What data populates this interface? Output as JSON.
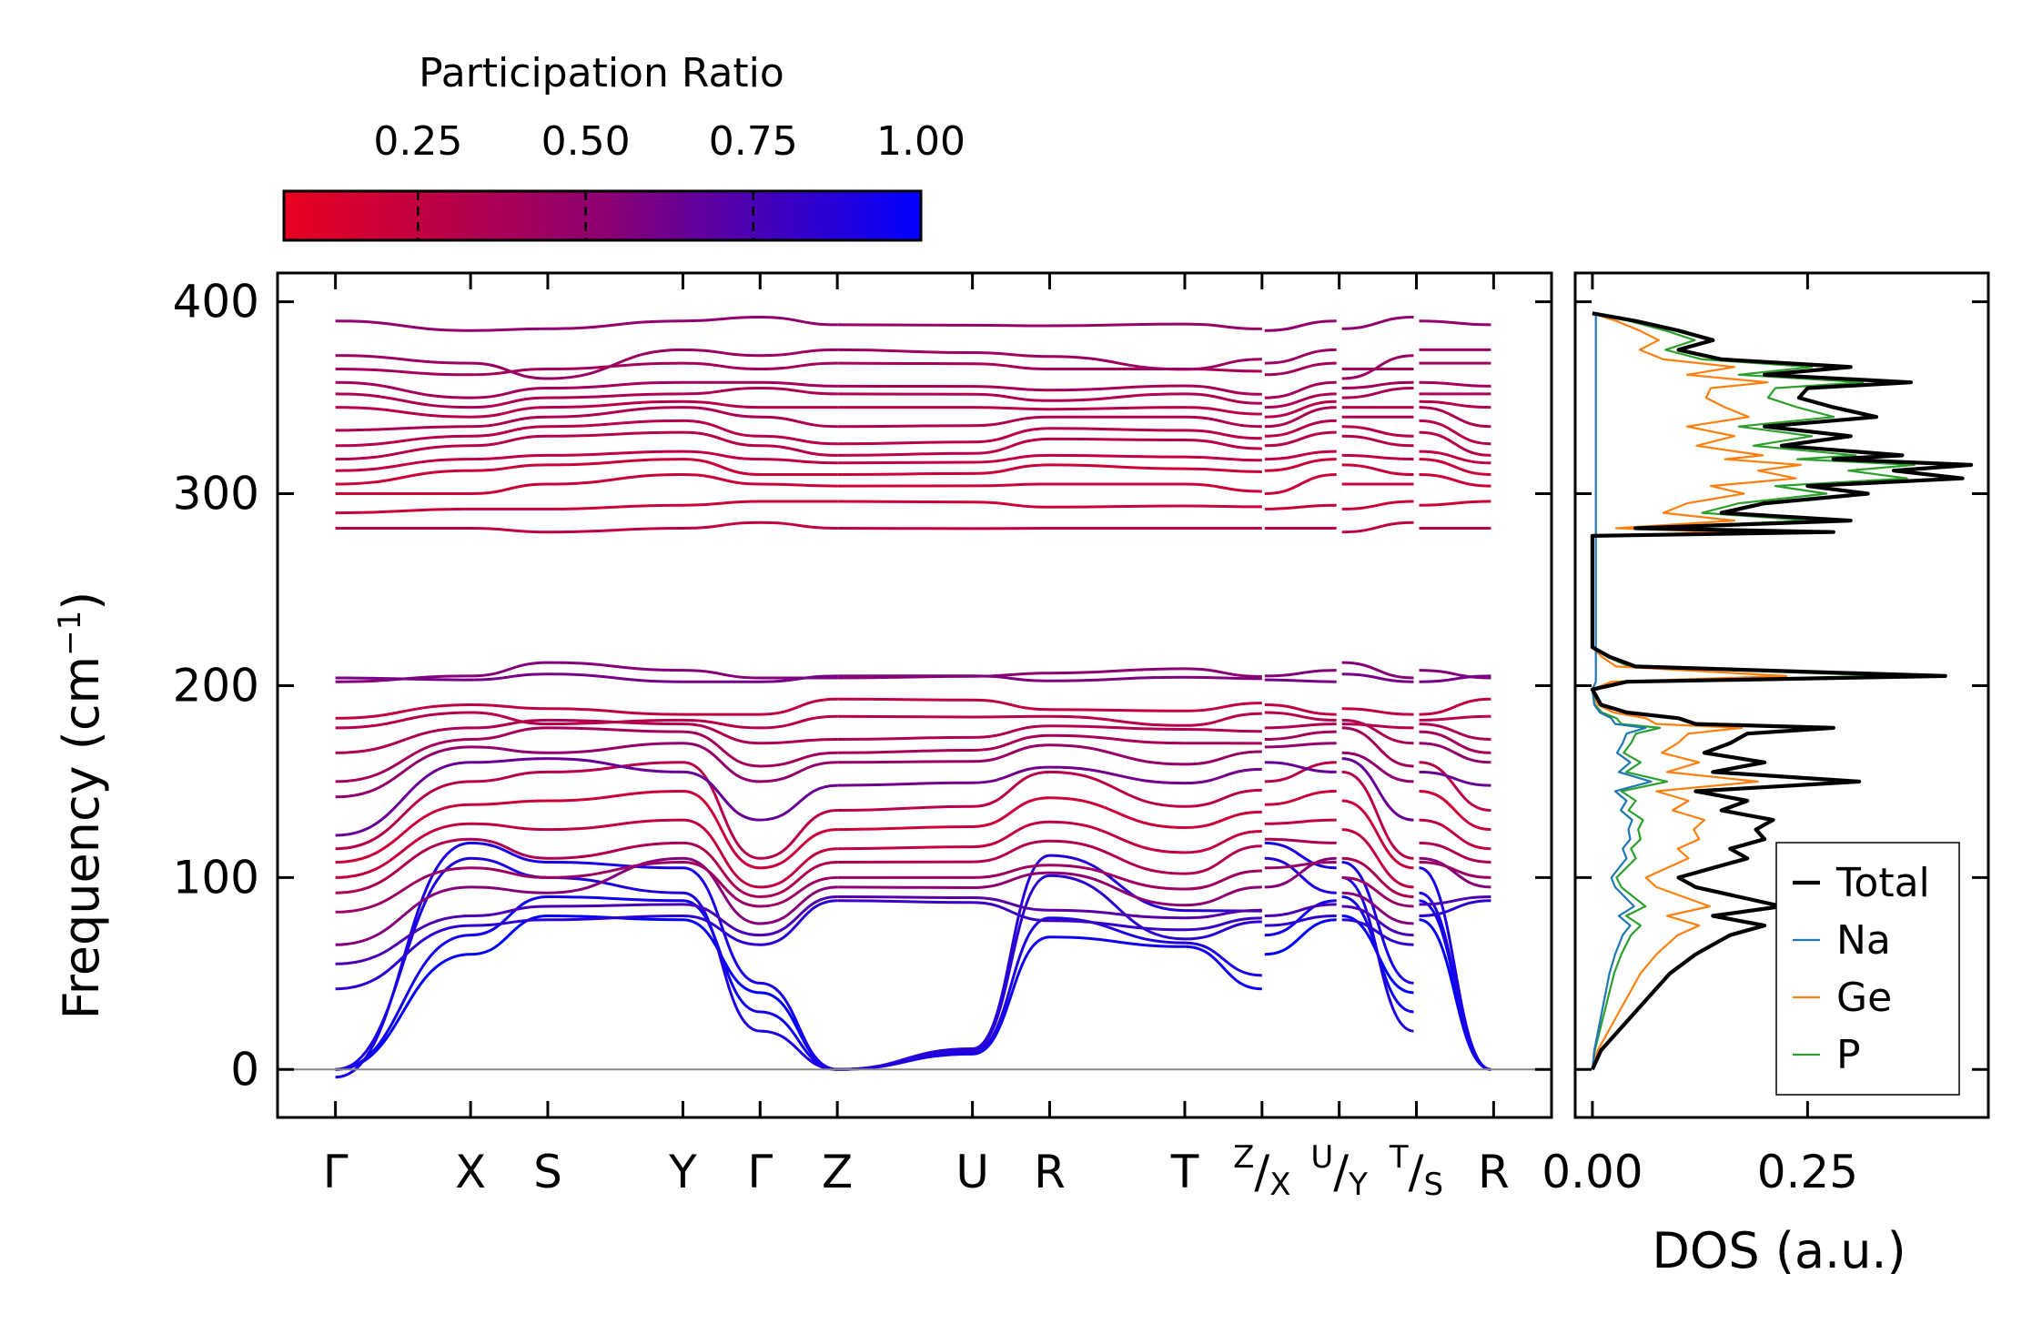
{
  "colorbar": {
    "title": "Participation Ratio",
    "ticks": [
      "0.25",
      "0.50",
      "0.75",
      "1.00"
    ],
    "tick_values": [
      0.25,
      0.5,
      0.75,
      1.0
    ],
    "range": [
      0.05,
      1.0
    ],
    "color_low": "#e8001f",
    "color_mid": "#8c0070",
    "color_high": "#0000ff"
  },
  "chart_data": [
    {
      "type": "line",
      "title": "",
      "ylabel": "Frequency (cm⁻¹)",
      "ylabel_base": "Frequency (cm",
      "ylabel_sup": "−1",
      "ylabel_close": ")",
      "ylim": [
        -25,
        415
      ],
      "yticks": [
        0,
        100,
        200,
        300,
        400
      ],
      "ytick_labels": [
        "0",
        "100",
        "200",
        "300",
        "400"
      ],
      "kpath": {
        "positions": [
          0,
          0.7,
          1.1,
          1.8,
          2.2,
          2.6,
          3.3,
          3.7,
          4.4,
          4.8,
          5.2,
          5.6,
          6.0
        ],
        "labels": [
          "Γ",
          "X",
          "S",
          "Y",
          "Γ",
          "Z",
          "U",
          "R",
          "T",
          "Z|X",
          "U|Y",
          "T|S",
          "R"
        ],
        "breaks_after": [
          4.8,
          5.2,
          5.6
        ]
      },
      "x_range": [
        -0.3,
        6.3
      ],
      "zero_line_color": "#888888",
      "branches": {
        "acoustic": [
          {
            "y": [
              0,
              60,
              80,
              78,
              40,
              0
            ],
            "pr": 1.0
          },
          {
            "y": [
              0,
              70,
              90,
              88,
              30,
              0
            ],
            "pr": 0.95
          },
          {
            "y": [
              0,
              110,
              100,
              92,
              20,
              0
            ],
            "pr": 0.9
          },
          {
            "y": [
              -4,
              118,
              108,
              105,
              45,
              0
            ],
            "pr": 0.92
          }
        ],
        "low_optical": [
          {
            "y": [
              42,
              75,
              78,
              80,
              65,
              88
            ],
            "pr": 0.85
          },
          {
            "y": [
              55,
              80,
              85,
              86,
              70,
              90
            ],
            "pr": 0.75
          },
          {
            "y": [
              65,
              95,
              92,
              110,
              76,
              95
            ],
            "pr": 0.55
          },
          {
            "y": [
              82,
              105,
              100,
              108,
              85,
              100
            ],
            "pr": 0.45
          },
          {
            "y": [
              92,
              120,
              110,
              118,
              90,
              108
            ],
            "pr": 0.35
          },
          {
            "y": [
              100,
              128,
              125,
              130,
              95,
              115
            ],
            "pr": 0.25
          },
          {
            "y": [
              108,
              138,
              140,
              145,
              105,
              125
            ],
            "pr": 0.2
          },
          {
            "y": [
              115,
              150,
              155,
              160,
              110,
              135
            ],
            "pr": 0.3
          },
          {
            "y": [
              122,
              160,
              162,
              155,
              130,
              148
            ],
            "pr": 0.65
          },
          {
            "y": [
              142,
              168,
              165,
              170,
              150,
              160
            ],
            "pr": 0.5
          },
          {
            "y": [
              150,
              172,
              178,
              176,
              158,
              165
            ],
            "pr": 0.4
          },
          {
            "y": [
              165,
              178,
              182,
              180,
              170,
              172
            ],
            "pr": 0.35
          },
          {
            "y": [
              178,
              186,
              180,
              182,
              178,
              184
            ],
            "pr": 0.3
          },
          {
            "y": [
              183,
              190,
              188,
              185,
              185,
              193
            ],
            "pr": 0.25
          },
          {
            "y": [
              202,
              205,
              212,
              208,
              204,
              204
            ],
            "pr": 0.55
          },
          {
            "y": [
              204,
              203,
              206,
              202,
              202,
              205
            ],
            "pr": 0.6
          }
        ],
        "high_optical": [
          {
            "y": [
              282,
              282,
              280,
              282,
              285,
              282
            ],
            "pr": 0.25
          },
          {
            "y": [
              290,
              292,
              292,
              294,
              296,
              296
            ],
            "pr": 0.2
          },
          {
            "y": [
              300,
              300,
              305,
              310,
              305,
              304
            ],
            "pr": 0.2
          },
          {
            "y": [
              305,
              312,
              315,
              318,
              310,
              310
            ],
            "pr": 0.2
          },
          {
            "y": [
              312,
              318,
              320,
              322,
              318,
              316
            ],
            "pr": 0.25
          },
          {
            "y": [
              318,
              325,
              330,
              332,
              325,
              320
            ],
            "pr": 0.3
          },
          {
            "y": [
              325,
              330,
              335,
              338,
              330,
              326
            ],
            "pr": 0.3
          },
          {
            "y": [
              333,
              335,
              340,
              345,
              340,
              335
            ],
            "pr": 0.35
          },
          {
            "y": [
              345,
              340,
              345,
              348,
              345,
              345
            ],
            "pr": 0.3
          },
          {
            "y": [
              352,
              345,
              350,
              352,
              355,
              352
            ],
            "pr": 0.35
          },
          {
            "y": [
              358,
              350,
              355,
              358,
              358,
              356
            ],
            "pr": 0.4
          },
          {
            "y": [
              365,
              362,
              365,
              368,
              365,
              368
            ],
            "pr": 0.4
          },
          {
            "y": [
              372,
              368,
              360,
              375,
              372,
              375
            ],
            "pr": 0.45
          },
          {
            "y": [
              390,
              385,
              386,
              390,
              392,
              388
            ],
            "pr": 0.5
          }
        ]
      }
    },
    {
      "type": "line",
      "xlabel": "DOS (a.u.)",
      "xlim": [
        -0.02,
        0.46
      ],
      "xticks": [
        0.0,
        0.25
      ],
      "xtick_labels": [
        "0.00",
        "0.25"
      ],
      "ylim": [
        -25,
        415
      ],
      "legend_position": "lower-right",
      "series": [
        {
          "name": "Total",
          "color": "#000000",
          "stroke": 4.2,
          "scale": 1.0
        },
        {
          "name": "Na",
          "color": "#1f77b4",
          "stroke": 2.2,
          "scale": 0.08
        },
        {
          "name": "Ge",
          "color": "#ff7f0e",
          "stroke": 2.2,
          "scale": 0.55
        },
        {
          "name": "P",
          "color": "#2ca02c",
          "stroke": 2.2,
          "scale": 0.85
        }
      ],
      "total_profile": {
        "freq": [
          0,
          10,
          20,
          30,
          40,
          50,
          60,
          70,
          75,
          80,
          85,
          90,
          95,
          100,
          105,
          110,
          115,
          120,
          125,
          130,
          135,
          140,
          145,
          150,
          155,
          160,
          165,
          170,
          175,
          178,
          180,
          183,
          186,
          190,
          198,
          202,
          205,
          210,
          215,
          220,
          230,
          250,
          270,
          278,
          280,
          282,
          286,
          290,
          295,
          300,
          304,
          308,
          312,
          315,
          318,
          320,
          325,
          330,
          335,
          340,
          345,
          350,
          355,
          358,
          362,
          366,
          370,
          375,
          380,
          385,
          390,
          394
        ],
        "dos": [
          0,
          0.01,
          0.03,
          0.05,
          0.07,
          0.09,
          0.12,
          0.16,
          0.2,
          0.14,
          0.22,
          0.17,
          0.12,
          0.1,
          0.14,
          0.18,
          0.16,
          0.2,
          0.19,
          0.21,
          0.15,
          0.18,
          0.12,
          0.31,
          0.14,
          0.2,
          0.13,
          0.16,
          0.18,
          0.28,
          0.12,
          0.1,
          0.04,
          0.01,
          0.0,
          0.04,
          0.41,
          0.05,
          0.02,
          0.0,
          0.0,
          0.0,
          0.0,
          0.0,
          0.28,
          0.05,
          0.3,
          0.15,
          0.2,
          0.32,
          0.25,
          0.43,
          0.35,
          0.44,
          0.28,
          0.36,
          0.22,
          0.3,
          0.2,
          0.33,
          0.28,
          0.24,
          0.25,
          0.37,
          0.2,
          0.3,
          0.15,
          0.1,
          0.14,
          0.1,
          0.05,
          0.0
        ]
      }
    }
  ]
}
